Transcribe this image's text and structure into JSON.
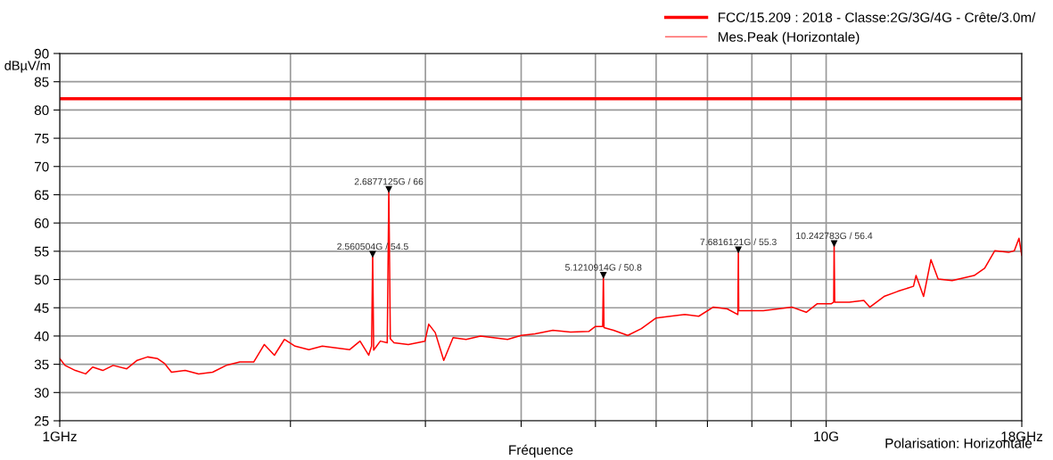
{
  "chart_data": {
    "type": "line",
    "xlabel": "Fréquence",
    "ylabel": "dBµV/m",
    "log": "x",
    "xlim": [
      1,
      18
    ],
    "ylim": [
      25,
      90
    ],
    "xticks": [
      {
        "value": 1,
        "label": "1GHz"
      },
      {
        "value": 2,
        "label": null
      },
      {
        "value": 3,
        "label": null
      },
      {
        "value": 4,
        "label": null
      },
      {
        "value": 5,
        "label": null
      },
      {
        "value": 6,
        "label": null
      },
      {
        "value": 7,
        "label": null
      },
      {
        "value": 8,
        "label": null
      },
      {
        "value": 9,
        "label": null
      },
      {
        "value": 10,
        "label": "10G"
      },
      {
        "value": 18,
        "label": "18GHz"
      }
    ],
    "yticks": [
      25,
      30,
      35,
      40,
      45,
      50,
      55,
      60,
      65,
      70,
      75,
      80,
      85,
      90
    ],
    "grid": true,
    "legend": "top right",
    "marker": "none",
    "line_style": "solid",
    "series": [
      {
        "name": "FCC/15.209 : 2018 - Classe:2G/3G/4G - Crête/3.0m/",
        "color": "#ff0000",
        "x": [
          1,
          18
        ],
        "values": [
          82,
          82
        ]
      },
      {
        "name": "Mes.Peak (Horizontale)",
        "color": "#ff0000",
        "x": [
          1.0,
          1.016,
          1.048,
          1.081,
          1.104,
          1.138,
          1.174,
          1.223,
          1.262,
          1.302,
          1.342,
          1.371,
          1.399,
          1.458,
          1.518,
          1.583,
          1.649,
          1.718,
          1.791,
          1.849,
          1.906,
          1.964,
          2.028,
          2.114,
          2.201,
          2.293,
          2.39,
          2.465,
          2.53,
          2.552,
          2.5605,
          2.568,
          2.62,
          2.675,
          2.6877,
          2.7,
          2.73,
          2.85,
          2.996,
          3.03,
          3.09,
          3.17,
          3.26,
          3.39,
          3.54,
          3.68,
          3.84,
          4.0,
          4.17,
          4.4,
          4.64,
          4.9,
          5.0,
          5.11,
          5.121,
          5.13,
          5.28,
          5.51,
          5.74,
          6.0,
          6.26,
          6.54,
          6.82,
          7.12,
          7.43,
          7.67,
          7.6816,
          7.69,
          7.93,
          8.28,
          8.65,
          9.03,
          9.42,
          9.73,
          10.15,
          10.23,
          10.2428,
          10.26,
          10.72,
          11.2,
          11.4,
          11.9,
          12.4,
          13.0,
          13.1,
          13.4,
          13.7,
          14.0,
          14.6,
          15.6,
          16.1,
          16.6,
          17.3,
          17.6,
          17.85,
          18.0
        ],
        "values": [
          36.0,
          34.8,
          33.9,
          33.3,
          34.5,
          33.9,
          34.8,
          34.2,
          35.7,
          36.3,
          36.0,
          35.1,
          33.6,
          33.9,
          33.3,
          33.6,
          34.8,
          35.4,
          35.4,
          38.5,
          36.6,
          39.4,
          38.2,
          37.6,
          38.2,
          37.9,
          37.6,
          39.1,
          36.6,
          38.2,
          54.5,
          37.5,
          39.1,
          38.8,
          66,
          39.5,
          38.8,
          38.5,
          39.1,
          42.1,
          40.6,
          35.7,
          39.7,
          39.4,
          40.0,
          39.7,
          39.4,
          40.1,
          40.4,
          41.0,
          40.7,
          40.8,
          41.7,
          41.7,
          50.8,
          41.5,
          41.0,
          40.1,
          41.3,
          43.2,
          43.5,
          43.8,
          43.5,
          45.1,
          44.8,
          43.8,
          55.3,
          44.5,
          44.5,
          44.5,
          44.8,
          45.1,
          44.2,
          45.7,
          45.7,
          46.0,
          56.4,
          46.0,
          46.0,
          46.3,
          45.1,
          47.0,
          47.9,
          48.8,
          50.7,
          47.0,
          53.5,
          50.1,
          49.8,
          50.7,
          52.0,
          55.1,
          54.8,
          55.1,
          57.3,
          54.3
        ]
      }
    ],
    "annotations": [
      {
        "text": "2.560504G / 54.5",
        "x": 2.560504,
        "y": 54.5
      },
      {
        "text": "2.6877125G / 66",
        "x": 2.6877125,
        "y": 66
      },
      {
        "text": "5.1210914G / 50.8",
        "x": 5.1210914,
        "y": 50.8
      },
      {
        "text": "7.6816121G / 55.3",
        "x": 7.6816121,
        "y": 55.3
      },
      {
        "text": "10.242783G / 56.4",
        "x": 10.242783,
        "y": 56.4
      },
      "Polarisation: Horizontale"
    ]
  }
}
